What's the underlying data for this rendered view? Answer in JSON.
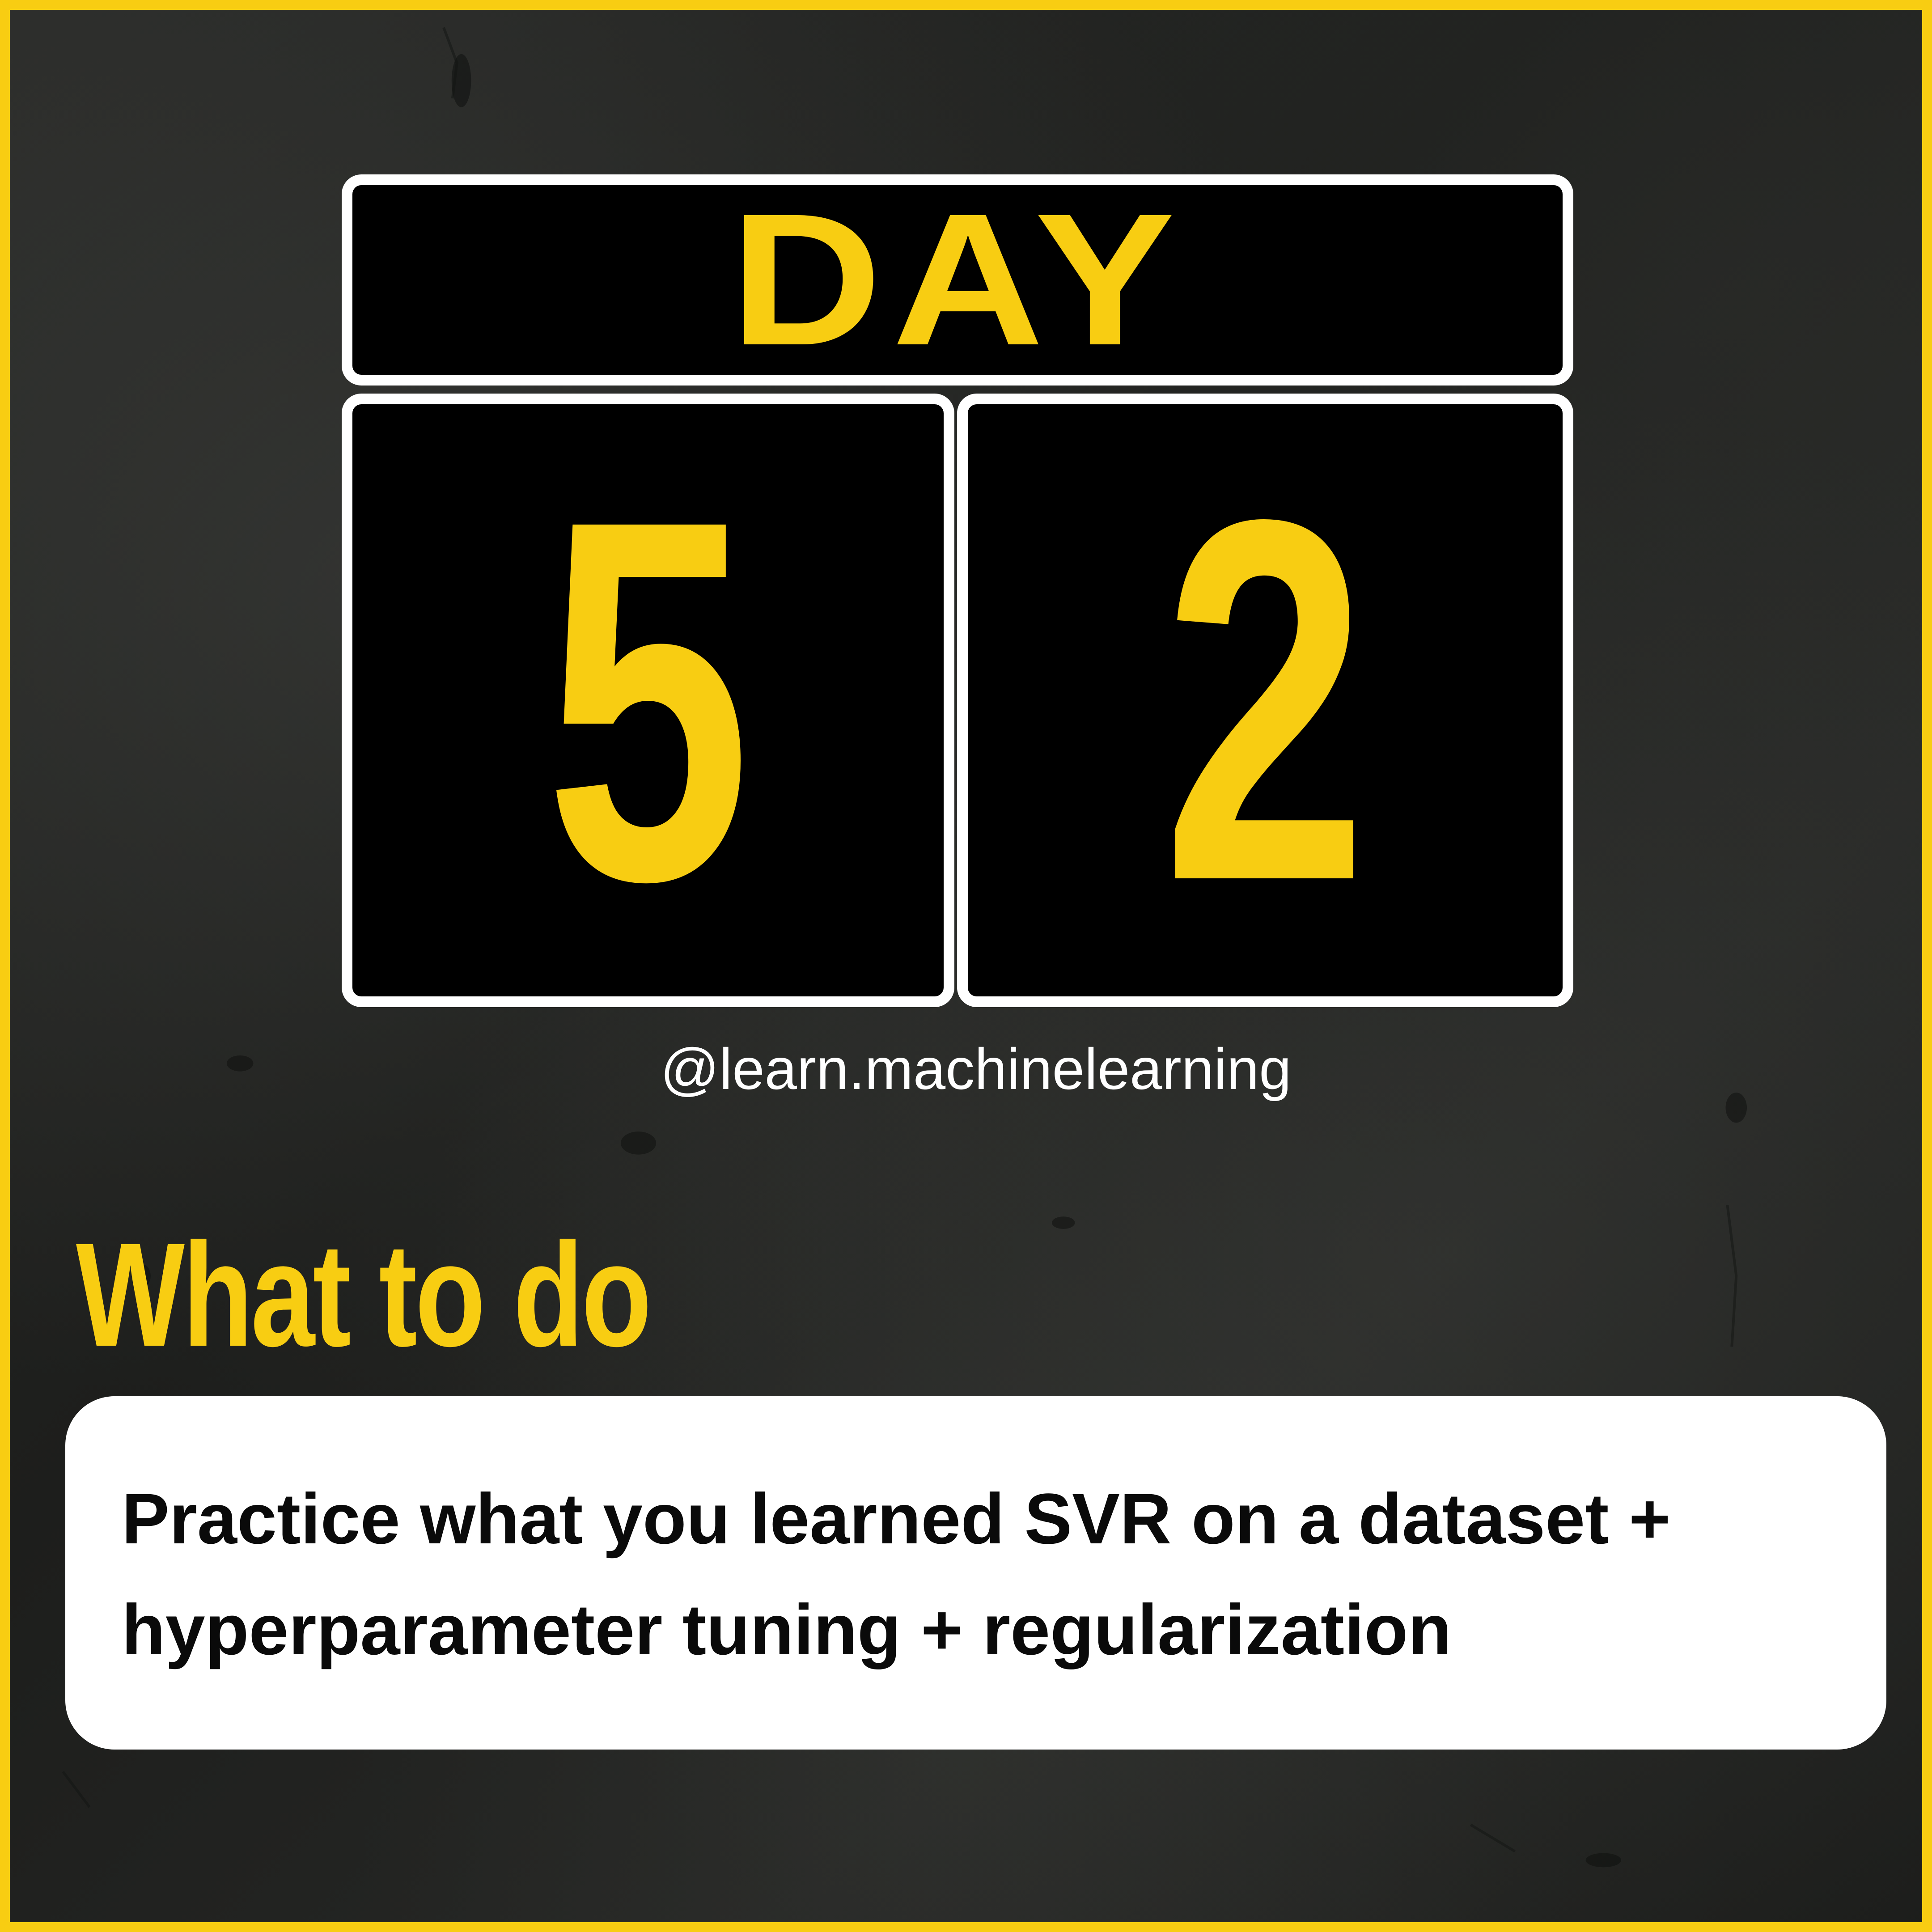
{
  "colors": {
    "accent": "#f8cd12",
    "panel": "#000000",
    "panel_border": "#ffffff",
    "background": "#1f201e",
    "card": "#ffffff",
    "card_text": "#0a0a0a"
  },
  "counter": {
    "label": "DAY",
    "digit_1": "5",
    "digit_2": "2"
  },
  "handle": "@learn.machinelearning",
  "section": {
    "title": "What to do",
    "task_lines": [
      "Practice what you learned SVR on a dataset +",
      "hyperparameter tuning + regularization"
    ]
  }
}
